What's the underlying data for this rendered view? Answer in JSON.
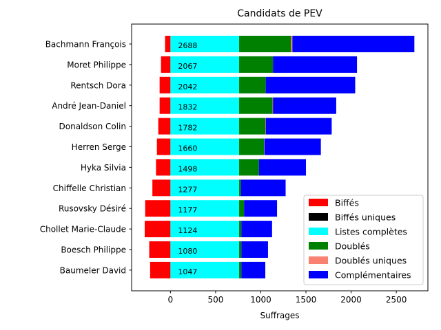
{
  "chart_data": {
    "type": "bar",
    "orientation": "horizontal",
    "stacked": true,
    "title": "Candidats de PEV",
    "xlabel": "Suffrages",
    "ylabel": "",
    "xlim": [
      -430,
      2850
    ],
    "xticks": [
      0,
      500,
      1000,
      1500,
      2000,
      2500
    ],
    "xtick_labels": [
      "0",
      "500",
      "1000",
      "1500",
      "2000",
      "2500"
    ],
    "grid": false,
    "legend_position": "lower-right",
    "categories": [
      "Bachmann François",
      "Moret Philippe",
      "Rentsch Dora",
      "André Jean-Daniel",
      "Donaldson Colin",
      "Herren Serge",
      "Hyka Silvia",
      "Chiffelle Christian",
      "Rusovsky Désiré",
      "Chollet Marie-Claude",
      "Boesch Philippe",
      "Baumeler David"
    ],
    "totals": [
      2688,
      2067,
      2042,
      1832,
      1782,
      1660,
      1498,
      1277,
      1177,
      1124,
      1080,
      1047
    ],
    "series": [
      {
        "name": "Biffés",
        "color": "#ff0000",
        "values": [
          -60,
          -105,
          -120,
          -120,
          -135,
          -150,
          -160,
          -200,
          -280,
          -285,
          -235,
          -225
        ]
      },
      {
        "name": "Biffés uniques",
        "color": "#000000",
        "values": [
          0,
          0,
          0,
          0,
          0,
          0,
          0,
          0,
          0,
          0,
          0,
          0
        ]
      },
      {
        "name": "Listes complètes",
        "color": "#00ffff",
        "values": [
          760,
          760,
          760,
          760,
          760,
          760,
          760,
          760,
          760,
          760,
          760,
          760
        ]
      },
      {
        "name": "Doublés",
        "color": "#008000",
        "values": [
          575,
          375,
          295,
          370,
          290,
          275,
          220,
          20,
          55,
          25,
          25,
          25
        ]
      },
      {
        "name": "Doublés uniques",
        "color": "#fa8072",
        "values": [
          15,
          0,
          0,
          5,
          5,
          5,
          0,
          0,
          0,
          0,
          0,
          0
        ]
      },
      {
        "name": "Complémentaires",
        "color": "#0000ff",
        "values": [
          1350,
          930,
          990,
          700,
          730,
          625,
          520,
          495,
          365,
          340,
          295,
          265
        ]
      }
    ]
  }
}
